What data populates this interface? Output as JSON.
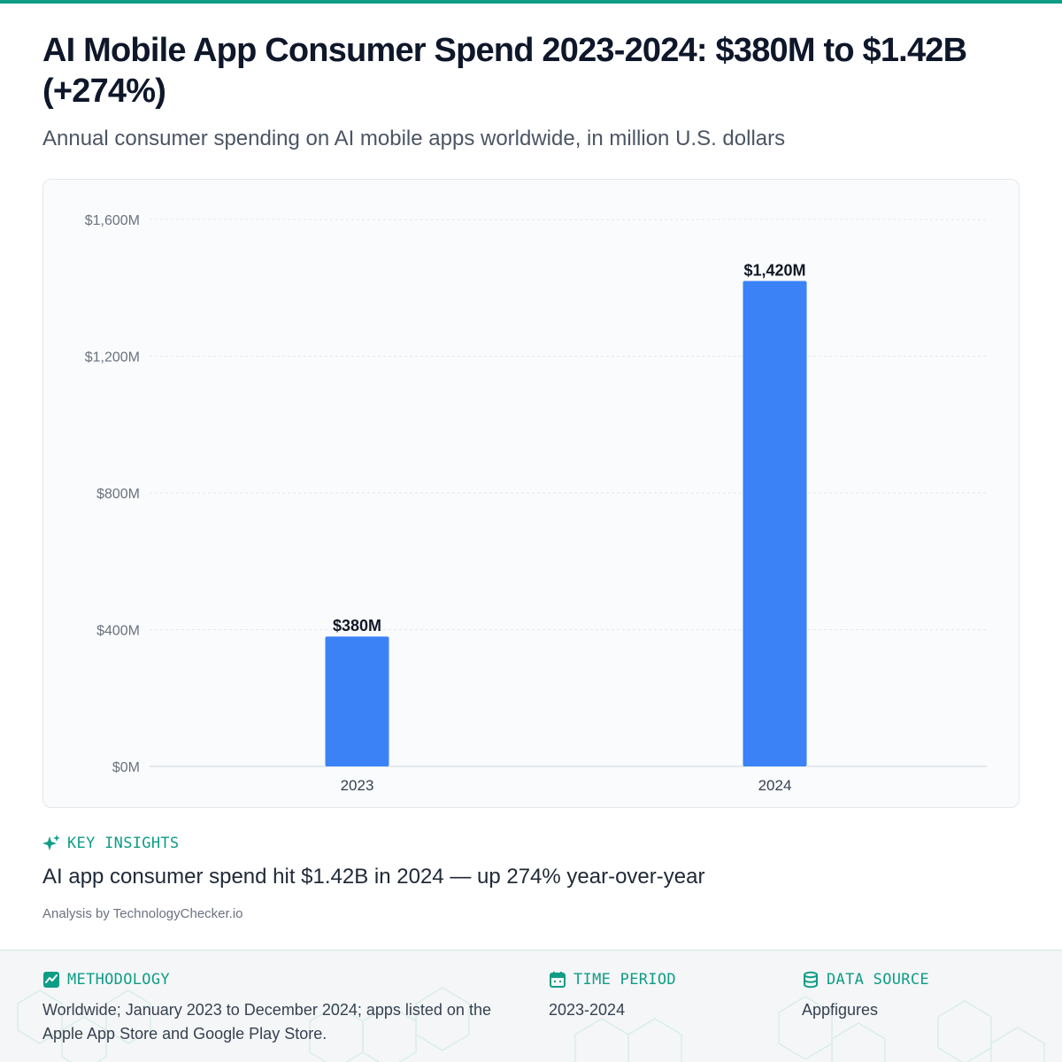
{
  "header": {
    "title": "AI Mobile App Consumer Spend 2023-2024: $380M to $1.42B (+274%)",
    "subtitle": "Annual consumer spending on AI mobile apps worldwide, in million U.S. dollars"
  },
  "chart_data": {
    "type": "bar",
    "categories": [
      "2023",
      "2024"
    ],
    "values": [
      380,
      1420
    ],
    "data_labels": [
      "$380M",
      "$1,420M"
    ],
    "ylim": [
      0,
      1600
    ],
    "yticks": [
      0,
      400,
      800,
      1200,
      1600
    ],
    "ytick_labels": [
      "$0M",
      "$400M",
      "$800M",
      "$1,200M",
      "$1,600M"
    ],
    "grid": true,
    "bar_color": "#3b82f6"
  },
  "insights": {
    "label": "KEY INSIGHTS",
    "icon": "sparkle-icon",
    "text": "AI app consumer spend hit $1.42B in 2024 — up 274% year-over-year",
    "attribution": "Analysis by TechnologyChecker.io"
  },
  "footer": {
    "methodology": {
      "label": "METHODOLOGY",
      "icon": "trend-chart-icon",
      "text": "Worldwide; January 2023 to December 2024; apps listed on the Apple App Store and Google Play Store."
    },
    "time_period": {
      "label": "TIME PERIOD",
      "icon": "calendar-icon",
      "text": "2023-2024"
    },
    "data_source": {
      "label": "DATA SOURCE",
      "icon": "database-icon",
      "text": "Appfigures"
    }
  },
  "colors": {
    "accent": "#0f9d86",
    "bar": "#3b82f6",
    "title": "#0f172a"
  }
}
